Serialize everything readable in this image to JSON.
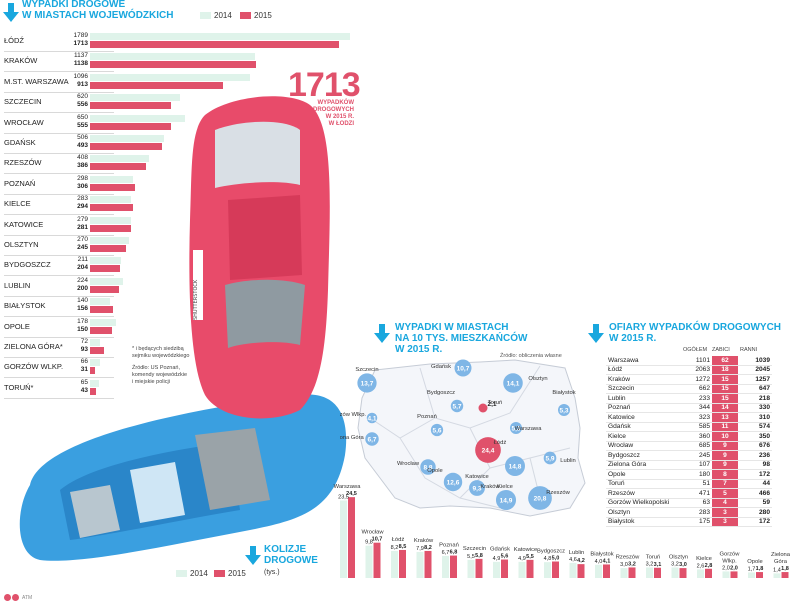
{
  "colors": {
    "accent_blue": "#19a7de",
    "y2014": "#dff3ea",
    "y2015": "#e0516b",
    "map_fill": "#f4f6fa",
    "bubble_blue": "#7fb6e6"
  },
  "section1": {
    "title_line1": "WYPADKI DROGOWE",
    "title_line2": "W MIASTACH WOJEWÓDZKICH",
    "legend_2014": "2014",
    "legend_2015": "2015"
  },
  "highlight": {
    "value": "1713",
    "caption_line1": "WYPADKÓW",
    "caption_line2": "DROGOWYCH",
    "caption_line3": "W 2015 R.",
    "caption_line4": "W ŁODZI"
  },
  "footnote": {
    "line1": "* i będących siedzibą",
    "line2": "sejmiku wojewódzkiego",
    "line3": "Źródło: US Poznań,",
    "line4": "komendy wojewódzkie",
    "line5": "i miejskie policji"
  },
  "section2": {
    "title_line1": "WYPADKI W MIASTACH",
    "title_line2": "NA 10 TYS. MIESZKAŃCÓW",
    "title_line3": "W 2015 R.",
    "source": "Źródło: obliczenia własne"
  },
  "section3": {
    "title_line1": "OFIARY WYPADKÓW DROGOWYCH",
    "title_line2": "W 2015 R.",
    "col_total": "OGÓŁEM",
    "col_killed": "ZABICI",
    "col_injured": "RANNI"
  },
  "section4": {
    "title_line1": "KOLIZJE",
    "title_line2": "DROGOWE",
    "unit": "(tys.)",
    "legend_2014": "2014",
    "legend_2015": "2015"
  },
  "car_plate": "SHUTTERSTOCK",
  "credit": "ATM",
  "chart_data": [
    {
      "type": "bar",
      "title": "WYPADKI DROGOWE W MIASTACH WOJEWÓDZKICH",
      "categories": [
        "ŁÓDŹ",
        "KRAKÓW",
        "M.ST. WARSZAWA",
        "SZCZECIN",
        "WROCŁAW",
        "GDAŃSK",
        "RZESZÓW",
        "POZNAŃ",
        "KIELCE",
        "KATOWICE",
        "OLSZTYN",
        "BYDGOSZCZ",
        "LUBLIN",
        "BIAŁYSTOK",
        "OPOLE",
        "ZIELONA GÓRA*",
        "GORZÓW WLKP.",
        "TORUŃ*"
      ],
      "series": [
        {
          "name": "2014",
          "values": [
            1789,
            1137,
            1096,
            620,
            650,
            506,
            408,
            298,
            283,
            279,
            270,
            211,
            224,
            140,
            178,
            72,
            66,
            65
          ]
        },
        {
          "name": "2015",
          "values": [
            1713,
            1138,
            913,
            556,
            555,
            493,
            386,
            306,
            294,
            281,
            245,
            204,
            200,
            156,
            150,
            93,
            31,
            43
          ]
        }
      ],
      "orientation": "horizontal",
      "legend": "top"
    },
    {
      "type": "scatter",
      "title": "WYPADKI W MIASTACH NA 10 TYS. MIESZKAŃCÓW W 2015 R.",
      "points": [
        {
          "label": "Szczecin",
          "value": "13,7"
        },
        {
          "label": "Gdańsk",
          "value": "10,7"
        },
        {
          "label": "Olsztyn",
          "value": "14,1"
        },
        {
          "label": "Białystok",
          "value": "5,3"
        },
        {
          "label": "Bydgoszcz",
          "value": "5,7"
        },
        {
          "label": "Toruń",
          "value": "2,1"
        },
        {
          "label": "Gorzów Wlkp.",
          "value": "4,1"
        },
        {
          "label": "Poznań",
          "value": "5,6"
        },
        {
          "label": "Warszawa",
          "value": "5,3"
        },
        {
          "label": "Zielona Góra",
          "value": "6,7"
        },
        {
          "label": "Łódź",
          "value": "24,4"
        },
        {
          "label": "Wrocław",
          "value": "8,8"
        },
        {
          "label": "Opole",
          "value": "12,6"
        },
        {
          "label": "Kielce",
          "value": "14,8"
        },
        {
          "label": "Lublin",
          "value": "5,9"
        },
        {
          "label": "Katowice",
          "value": "9,3"
        },
        {
          "label": "Kraków",
          "value": "14,9"
        },
        {
          "label": "Rzeszów",
          "value": "20,8"
        }
      ]
    },
    {
      "type": "table",
      "title": "OFIARY WYPADKÓW DROGOWYCH W 2015 R.",
      "columns": [
        "",
        "OGÓŁEM",
        "ZABICI",
        "RANNI"
      ],
      "rows": [
        [
          "Warszawa",
          "1101",
          "62",
          "1039"
        ],
        [
          "Łódź",
          "2063",
          "18",
          "2045"
        ],
        [
          "Kraków",
          "1272",
          "15",
          "1257"
        ],
        [
          "Szczecin",
          "662",
          "15",
          "647"
        ],
        [
          "Lublin",
          "233",
          "15",
          "218"
        ],
        [
          "Poznań",
          "344",
          "14",
          "330"
        ],
        [
          "Katowice",
          "323",
          "13",
          "310"
        ],
        [
          "Gdańsk",
          "585",
          "11",
          "574"
        ],
        [
          "Kielce",
          "360",
          "10",
          "350"
        ],
        [
          "Wrocław",
          "685",
          "9",
          "676"
        ],
        [
          "Bydgoszcz",
          "245",
          "9",
          "236"
        ],
        [
          "Zielona Góra",
          "107",
          "9",
          "98"
        ],
        [
          "Opole",
          "180",
          "8",
          "172"
        ],
        [
          "Toruń",
          "51",
          "7",
          "44"
        ],
        [
          "Rzeszów",
          "471",
          "5",
          "466"
        ],
        [
          "Gorzów Wielkopolski",
          "63",
          "4",
          "59"
        ],
        [
          "Olsztyn",
          "283",
          "3",
          "280"
        ],
        [
          "Białystok",
          "175",
          "3",
          "172"
        ]
      ]
    },
    {
      "type": "bar",
      "title": "KOLIZJE DROGOWE (tys.)",
      "categories": [
        "Warszawa",
        "Wrocław",
        "Łódź",
        "Kraków",
        "Poznań",
        "Szczecin",
        "Gdańsk",
        "Katowice",
        "Bydgoszcz",
        "Lublin",
        "Białystok",
        "Rzeszów",
        "Toruń",
        "Olsztyn",
        "Kielce",
        "Gorzów Wlkp.",
        "Opole",
        "Zielona Góra"
      ],
      "series": [
        {
          "name": "2014",
          "values": [
            23.5,
            9.8,
            8.2,
            7.9,
            6.7,
            5.5,
            4.9,
            4.9,
            4.8,
            4.6,
            4.0,
            3.0,
            3.2,
            3.2,
            2.6,
            2.0,
            1.7,
            1.4
          ]
        },
        {
          "name": "2015",
          "values": [
            24.5,
            10.7,
            8.5,
            8.2,
            6.8,
            5.8,
            5.6,
            5.5,
            5.0,
            4.2,
            4.1,
            3.2,
            3.1,
            3.0,
            2.8,
            2.0,
            1.8,
            1.8
          ]
        }
      ],
      "labels_2014": [
        "23,5",
        "9,8",
        "8,2",
        "7,9",
        "6,7",
        "5,5",
        "4,9",
        "4,9",
        "4,8",
        "4,6",
        "4,0",
        "3,0",
        "3,2",
        "3,2",
        "2,6",
        "2,0",
        "1,7",
        "1,4"
      ],
      "labels_2015": [
        "24,5",
        "10,7",
        "8,5",
        "8,2",
        "6,8",
        "5,8",
        "5,6",
        "5,5",
        "5,0",
        "4,2",
        "4,1",
        "3,2",
        "3,1",
        "3,0",
        "2,8",
        "2,0",
        "1,8",
        "1,8"
      ],
      "legend": "bottom-left"
    }
  ]
}
